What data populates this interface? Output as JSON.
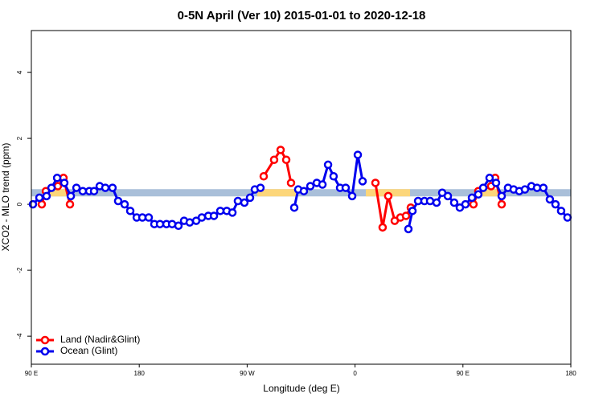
{
  "chart_data": {
    "type": "line",
    "title": "0-5N April (Ver 10)   2015-01-01 to 2020-12-18",
    "x_label": "Longitude (deg E)",
    "y_label": "XCO2 - MLO trend (ppm)",
    "xlim": [
      90,
      540
    ],
    "ylim": [
      -4.85,
      5.27
    ],
    "xticks": [
      {
        "value": 90,
        "label": "90 E"
      },
      {
        "value": 180,
        "label": "180"
      },
      {
        "value": 270,
        "label": "90 W"
      },
      {
        "value": 360,
        "label": "0"
      },
      {
        "value": 450,
        "label": "90 E"
      },
      {
        "value": 540,
        "label": "180"
      }
    ],
    "yticks": [
      -4,
      -2,
      0,
      2,
      4
    ],
    "legend": "bottom-left",
    "band": {
      "y": [
        0.24,
        0.46
      ],
      "color": "#a9bfd9"
    },
    "land_segments": {
      "x": [
        [
          100.7,
          120.8
        ],
        [
          278.5,
          312.0
        ],
        [
          369.0,
          405.9
        ],
        [
          459.5,
          479.7
        ]
      ],
      "color": "#fcd67a"
    },
    "series": [
      {
        "name": "Land (Nadir&Glint)",
        "color": "#ff0000",
        "x": [
          98.7,
          102.1,
          112.1,
          116.8,
          122.2,
          null,
          283.8,
          292.5,
          297.9,
          302.6,
          306.6,
          null,
          377.0,
          383.0,
          387.7,
          393.1,
          397.8,
          402.5,
          406.5,
          null,
          458.8,
          462.8,
          473.5,
          476.9,
          482.3
        ],
        "values": [
          0,
          0.4,
          0.55,
          0.8,
          0,
          null,
          0.85,
          1.35,
          1.65,
          1.35,
          0.65,
          null,
          0.65,
          -0.7,
          0.25,
          -0.5,
          -0.4,
          -0.35,
          -0.1,
          null,
          0,
          0.4,
          0.55,
          0.8,
          0
        ]
      },
      {
        "name": "Ocean (Glint)",
        "color": "#0000ee",
        "x": [
          91.3,
          96.7,
          102.7,
          106.8,
          111.5,
          117.5,
          122.9,
          127.6,
          132.9,
          138.3,
          142.3,
          147.0,
          151.7,
          157.7,
          162.4,
          167.8,
          172.5,
          177.9,
          182.6,
          187.9,
          192.6,
          197.3,
          202.7,
          207.4,
          212.7,
          217.4,
          222.1,
          227.5,
          232.2,
          237.6,
          242.3,
          247.6,
          253.0,
          257.7,
          262.3,
          267.7,
          272.4,
          276.4,
          281.1,
          null,
          309.3,
          312.6,
          317.3,
          322.7,
          328.1,
          332.8,
          337.5,
          342.1,
          347.5,
          352.2,
          357.6,
          362.3,
          366.3,
          null,
          404.5,
          407.9,
          412.6,
          417.9,
          422.6,
          428.0,
          432.7,
          437.4,
          442.7,
          447.4,
          452.1,
          457.5,
          462.8,
          466.9,
          472.2,
          477.6,
          482.3,
          487.6,
          492.3,
          497.0,
          501.7,
          507.1,
          511.8,
          517.1,
          522.5,
          527.2,
          531.9,
          537.2
        ],
        "values": [
          0,
          0.2,
          0.25,
          0.5,
          0.8,
          0.65,
          0.25,
          0.5,
          0.4,
          0.4,
          0.4,
          0.55,
          0.5,
          0.5,
          0.1,
          0,
          -0.2,
          -0.4,
          -0.4,
          -0.4,
          -0.6,
          -0.6,
          -0.6,
          -0.6,
          -0.65,
          -0.5,
          -0.55,
          -0.5,
          -0.4,
          -0.35,
          -0.35,
          -0.2,
          -0.2,
          -0.25,
          0.1,
          0.05,
          0.2,
          0.45,
          0.5,
          null,
          -0.1,
          0.45,
          0.4,
          0.55,
          0.65,
          0.6,
          1.2,
          0.85,
          0.5,
          0.5,
          0.25,
          1.5,
          0.7,
          null,
          -0.75,
          -0.2,
          0.1,
          0.1,
          0.1,
          0.05,
          0.35,
          0.25,
          0.05,
          -0.1,
          0,
          0.2,
          0.3,
          0.5,
          0.8,
          0.65,
          0.25,
          0.5,
          0.45,
          0.4,
          0.45,
          0.55,
          0.5,
          0.5,
          0.15,
          0,
          -0.2,
          -0.4
        ]
      }
    ]
  }
}
